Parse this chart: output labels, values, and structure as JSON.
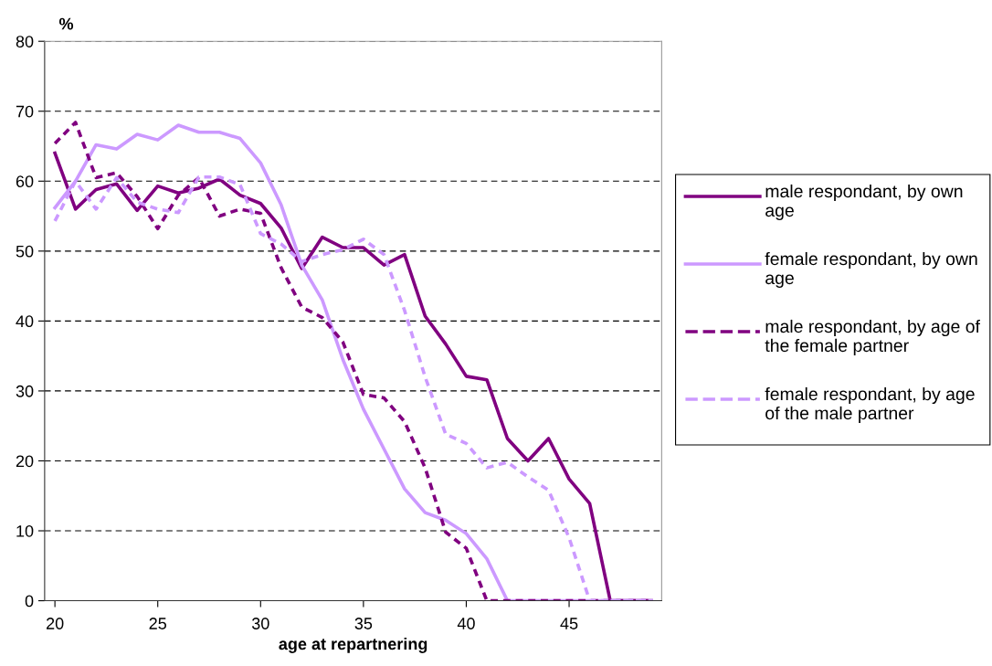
{
  "chart_data": {
    "type": "line",
    "ylabel": "%",
    "xlabel": "age at repartnering",
    "x": [
      20,
      21,
      22,
      23,
      24,
      25,
      26,
      27,
      28,
      29,
      30,
      31,
      32,
      33,
      34,
      35,
      36,
      37,
      38,
      39,
      40,
      41,
      42,
      43,
      44,
      45,
      46,
      47,
      48,
      49
    ],
    "xlim": [
      19.5,
      49.5
    ],
    "xticks": [
      20,
      25,
      30,
      35,
      40,
      45
    ],
    "ylim": [
      0,
      80
    ],
    "yticks": [
      0,
      10,
      20,
      30,
      40,
      50,
      60,
      70,
      80
    ],
    "grid": "y",
    "legend": "right",
    "marker": "none",
    "series": [
      {
        "name": "male respondant, by own age",
        "color": "#800080",
        "line_style": "solid",
        "values": [
          64,
          56,
          58.8,
          59.6,
          55.8,
          59.3,
          58.3,
          59,
          60.3,
          58,
          56.8,
          53.3,
          47.5,
          52,
          50.5,
          50.5,
          48,
          49.5,
          40.7,
          36.7,
          32.1,
          31.6,
          23.2,
          20,
          23.2,
          17.4,
          13.9,
          0,
          0,
          0
        ]
      },
      {
        "name": "female respondant, by own age",
        "color": "#cc99ff",
        "line_style": "solid",
        "values": [
          56.2,
          60,
          65.2,
          64.6,
          66.7,
          65.9,
          68,
          67,
          67,
          66.1,
          62.6,
          56.6,
          48,
          43,
          34.5,
          27.4,
          21.7,
          16,
          12.6,
          11.5,
          9.6,
          6,
          0,
          0,
          0,
          0,
          0,
          0,
          0,
          0
        ]
      },
      {
        "name": "male respondant, by age of the female partner",
        "color": "#800080",
        "line_style": "dashed",
        "values": [
          65.4,
          68.4,
          60.5,
          61.2,
          57.8,
          53.2,
          58,
          60.5,
          55,
          56,
          55.4,
          47.6,
          42,
          40.5,
          37,
          29.5,
          29,
          25.6,
          19,
          9.8,
          7.5,
          0,
          0,
          0,
          0,
          0,
          0,
          0,
          0,
          0
        ]
      },
      {
        "name": "female respondant, by age of the male partner",
        "color": "#cc99ff",
        "line_style": "dashed",
        "values": [
          54.3,
          60,
          56,
          60.5,
          57,
          56,
          55.5,
          60.6,
          60.6,
          59.5,
          52.5,
          51,
          48.5,
          49.5,
          50.2,
          51.7,
          49.5,
          41.5,
          32,
          23.8,
          22.5,
          19,
          19.8,
          17.7,
          15.8,
          9,
          0,
          0,
          0,
          0
        ]
      }
    ]
  }
}
